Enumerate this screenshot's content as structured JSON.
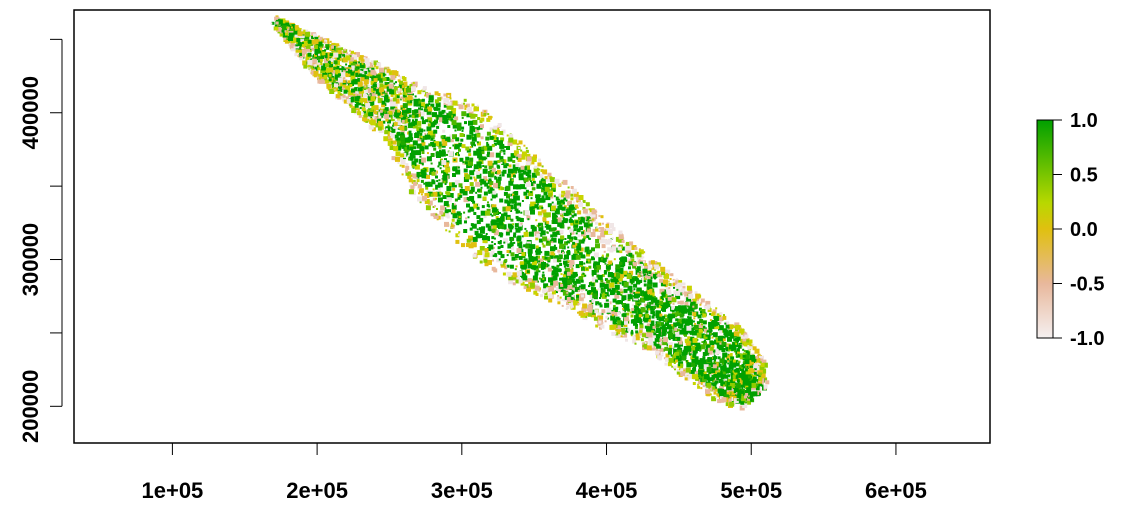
{
  "chart_data": {
    "type": "heatmap",
    "title": "",
    "xlabel": "",
    "ylabel": "",
    "xlim": [
      32000,
      665000
    ],
    "ylim": [
      175000,
      470000
    ],
    "x_ticks": [
      {
        "value": 100000,
        "label": "1e+05"
      },
      {
        "value": 200000,
        "label": "2e+05"
      },
      {
        "value": 300000,
        "label": "3e+05"
      },
      {
        "value": 400000,
        "label": "4e+05"
      },
      {
        "value": 500000,
        "label": "5e+05"
      },
      {
        "value": 600000,
        "label": "6e+05"
      }
    ],
    "y_ticks": [
      {
        "value": 200000,
        "label": "200000"
      },
      {
        "value": 250000,
        "label": ""
      },
      {
        "value": 300000,
        "label": "300000"
      },
      {
        "value": 350000,
        "label": ""
      },
      {
        "value": 400000,
        "label": "400000"
      },
      {
        "value": 450000,
        "label": ""
      }
    ],
    "colorbar": {
      "range": [
        -1.0,
        1.0
      ],
      "colors": [
        "#f5f0f0",
        "#e8b89c",
        "#e0c010",
        "#b8d800",
        "#00a000"
      ],
      "ticks": [
        {
          "value": 1.0,
          "label": "1.0"
        },
        {
          "value": 0.5,
          "label": "0.5"
        },
        {
          "value": 0.0,
          "label": "0.0"
        },
        {
          "value": -0.5,
          "label": "-0.5"
        },
        {
          "value": -1.0,
          "label": "-1.0"
        }
      ]
    },
    "region": {
      "centerline": [
        [
          172000,
          462000
        ],
        [
          200000,
          440000
        ],
        [
          230000,
          420000
        ],
        [
          260000,
          400000
        ],
        [
          290000,
          375000
        ],
        [
          320000,
          345000
        ],
        [
          350000,
          320000
        ],
        [
          380000,
          300000
        ],
        [
          410000,
          280000
        ],
        [
          440000,
          262000
        ],
        [
          470000,
          240000
        ],
        [
          490000,
          220000
        ],
        [
          500000,
          210000
        ]
      ],
      "halfwidth": [
        3000,
        12000,
        18000,
        22000,
        38000,
        40000,
        40000,
        33000,
        30000,
        26000,
        26000,
        22000,
        10000
      ]
    }
  }
}
